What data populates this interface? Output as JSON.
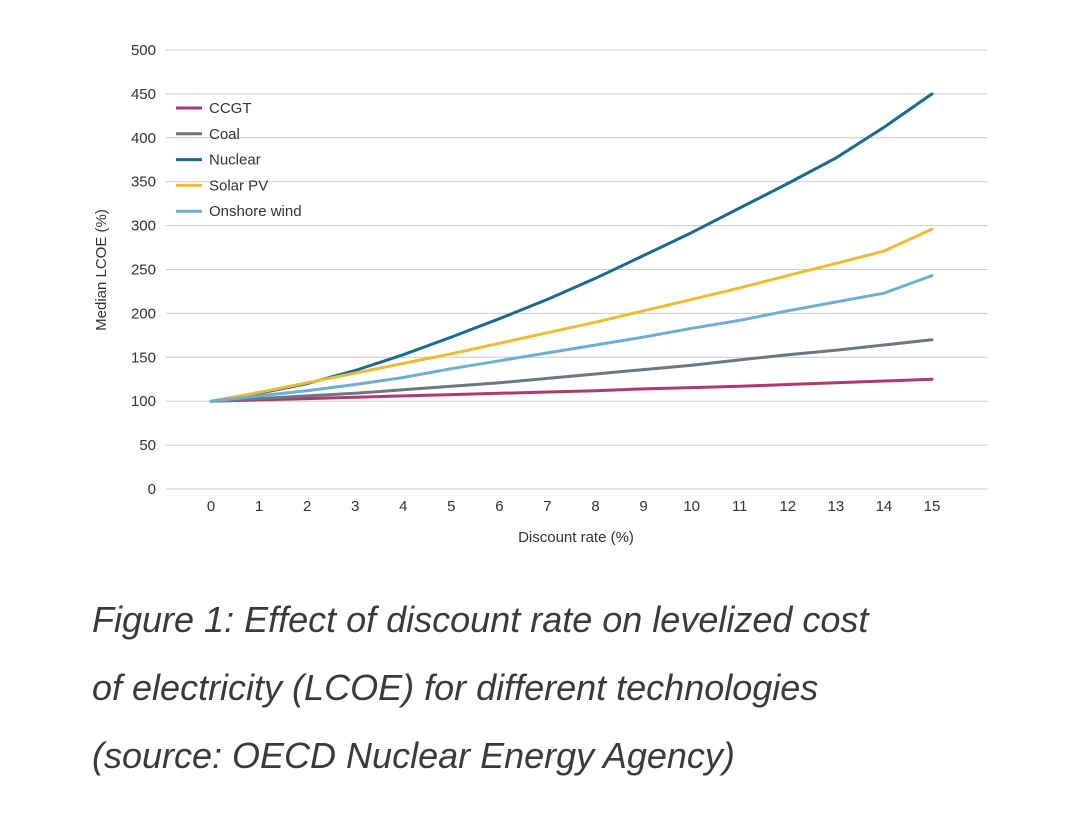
{
  "chart_data": {
    "type": "line",
    "title": "",
    "xlabel": "Discount rate (%)",
    "ylabel": "Median LCOE (%)",
    "xlim": [
      0,
      15
    ],
    "ylim": [
      0,
      500
    ],
    "x_ticks": [
      0,
      1,
      2,
      3,
      4,
      5,
      6,
      7,
      8,
      9,
      10,
      11,
      12,
      13,
      14,
      15
    ],
    "y_ticks": [
      0,
      50,
      100,
      150,
      200,
      250,
      300,
      350,
      400,
      450,
      500
    ],
    "grid": "horizontal",
    "legend_position": "top-left",
    "x": [
      0,
      1,
      2,
      3,
      4,
      5,
      6,
      7,
      8,
      9,
      10,
      11,
      12,
      13,
      14,
      15
    ],
    "series": [
      {
        "name": "CCGT",
        "color": "#b03a6e",
        "values": [
          100,
          101.5,
          103,
          104.5,
          106,
          107.5,
          109,
          110.5,
          112,
          114,
          115.5,
          117,
          119,
          121,
          123,
          125
        ]
      },
      {
        "name": "Coal",
        "color": "#6e7585",
        "values": [
          100,
          103,
          106,
          109,
          113,
          117,
          121,
          126,
          131,
          136,
          141,
          147,
          153,
          158,
          164,
          170
        ]
      },
      {
        "name": "Nuclear",
        "color": "#1b6b8f",
        "values": [
          100,
          109,
          120,
          135,
          153,
          173,
          194,
          216,
          240,
          266,
          292,
          320,
          348,
          377,
          412,
          450
        ]
      },
      {
        "name": "Solar PV",
        "color": "#efbb35",
        "values": [
          100,
          110,
          121,
          132,
          143,
          154,
          166,
          178,
          190,
          203,
          216,
          229,
          243,
          257,
          271,
          296
        ]
      },
      {
        "name": "Onshore wind",
        "color": "#6eaed1",
        "values": [
          100,
          106,
          112,
          119,
          127,
          137,
          146,
          155,
          164,
          173,
          183,
          192,
          203,
          213,
          223,
          243
        ]
      }
    ]
  },
  "caption": {
    "line1": "Figure 1: Effect of discount rate on levelized cost",
    "line2": "of electricity (LCOE) for different technologies",
    "line3": "(source: OECD Nuclear Energy Agency)"
  }
}
